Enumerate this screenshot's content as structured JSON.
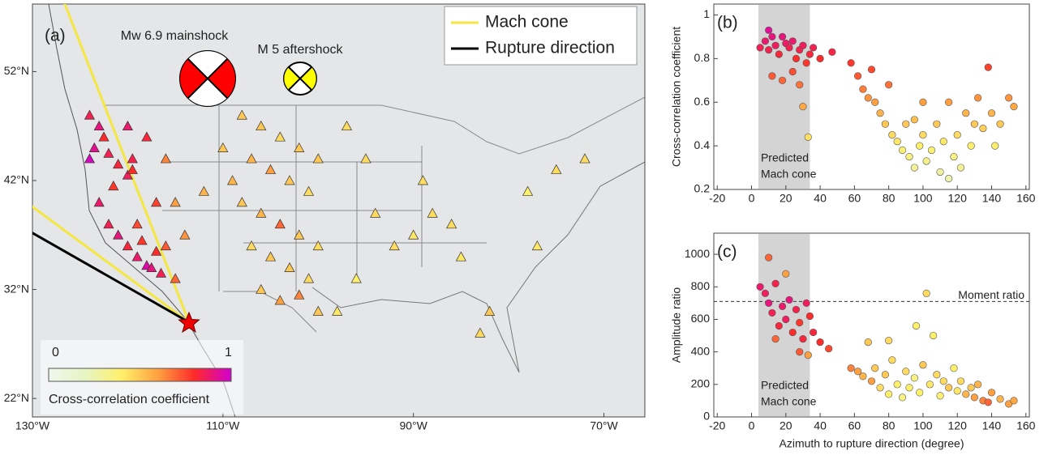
{
  "chart_data": [
    {
      "type": "map",
      "panel_label": "(a)",
      "xlim": [
        -130,
        -65.7
      ],
      "ylim": [
        20.3,
        58.2
      ],
      "xticks": [
        {
          "value": -130,
          "label": "130°W"
        },
        {
          "value": -110,
          "label": "110°W"
        },
        {
          "value": -90,
          "label": "90°W"
        },
        {
          "value": -70,
          "label": "70°W"
        }
      ],
      "yticks": [
        {
          "value": 52,
          "label": "52°N"
        },
        {
          "value": 42,
          "label": "42°N"
        },
        {
          "value": 32,
          "label": "32°N"
        },
        {
          "value": 22,
          "label": "22°N"
        }
      ],
      "annotations": [
        "Mw 6.9 mainshock",
        "M 5 aftershock"
      ],
      "lines": [
        {
          "name": "Mach cone",
          "color": "#f5e642"
        },
        {
          "name": "Rupture direction",
          "color": "#000000"
        }
      ],
      "colormap": [
        "#eef7ee",
        "#e6f4c4",
        "#fff06a",
        "#ffa040",
        "#ff2a2a",
        "#d000d0"
      ],
      "clim": [
        0,
        1
      ],
      "cticks": [
        0,
        1
      ],
      "colorbar_label": "Cross-correlation coefficient",
      "x": [
        -124,
        -123,
        -122.5,
        -123.5,
        -124,
        -122,
        -121,
        -120,
        -119.5,
        -121.5,
        -123,
        -122,
        -121,
        -120,
        -119,
        -118,
        -117.5,
        -116.5,
        -117,
        -118.5,
        -119,
        -116,
        -117,
        -118,
        -120,
        -116,
        -115,
        -114,
        -115,
        -119.5,
        -108,
        -106,
        -104,
        -102,
        -107,
        -105,
        -103,
        -101,
        -108,
        -106,
        -104,
        -102,
        -107,
        -105,
        -103,
        -101,
        -106,
        -104,
        -102,
        -100,
        -100,
        -100,
        -109,
        -110,
        -112,
        -97,
        -95,
        -94,
        -92,
        -96,
        -90,
        -88,
        -89,
        -85,
        -86,
        -82,
        -78,
        -77,
        -75,
        -83,
        -98,
        -72
      ],
      "y": [
        48,
        47,
        46,
        45,
        44,
        44.5,
        43.5,
        42.5,
        43,
        41.5,
        40,
        38,
        37,
        36,
        35,
        34.2,
        34,
        33.5,
        35.5,
        36.5,
        38,
        36,
        40,
        46,
        47,
        44,
        40,
        37,
        33,
        44,
        48,
        47,
        46,
        45,
        44,
        43,
        42,
        41,
        40,
        39,
        38,
        37,
        36,
        35,
        34,
        33,
        32,
        31,
        31.5,
        30,
        36,
        44,
        42,
        45,
        41,
        47,
        44,
        39,
        36,
        33,
        37,
        39,
        42,
        35,
        38,
        30,
        41,
        36,
        43,
        28,
        30,
        44
      ],
      "values": [
        0.85,
        0.9,
        0.8,
        0.92,
        0.98,
        0.85,
        0.82,
        0.86,
        0.8,
        0.78,
        0.88,
        0.85,
        0.9,
        0.82,
        0.88,
        0.95,
        0.9,
        0.85,
        0.8,
        0.78,
        0.75,
        0.72,
        0.76,
        0.82,
        0.88,
        0.65,
        0.6,
        0.62,
        0.7,
        0.84,
        0.5,
        0.5,
        0.45,
        0.5,
        0.55,
        0.6,
        0.5,
        0.45,
        0.5,
        0.55,
        0.7,
        0.5,
        0.45,
        0.5,
        0.5,
        0.45,
        0.5,
        0.6,
        0.65,
        0.5,
        0.45,
        0.5,
        0.55,
        0.5,
        0.55,
        0.45,
        0.45,
        0.45,
        0.45,
        0.4,
        0.42,
        0.45,
        0.45,
        0.42,
        0.45,
        0.5,
        0.4,
        0.42,
        0.45,
        0.45,
        0.42,
        0.45
      ]
    },
    {
      "type": "scatter",
      "panel_label": "(b)",
      "ylabel": "Cross-correlation coefficient",
      "xlim": [
        -22,
        162
      ],
      "ylim": [
        0.2,
        1.05
      ],
      "xticks": [
        -20,
        0,
        20,
        40,
        60,
        80,
        100,
        120,
        140,
        160
      ],
      "yticks": [
        0.2,
        0.4,
        0.6,
        0.8,
        1
      ],
      "shade": [
        4,
        34
      ],
      "annotation": [
        "Predicted",
        "Mach cone"
      ],
      "colormap": [
        "#eef7ee",
        "#e6f4c4",
        "#fff06a",
        "#ffa040",
        "#ff2a2a",
        "#d000d0"
      ],
      "x": [
        5,
        8,
        10,
        12,
        14,
        16,
        18,
        20,
        22,
        24,
        26,
        28,
        30,
        32,
        34,
        12,
        18,
        24,
        28,
        30,
        10,
        36,
        40,
        47,
        33,
        58,
        62,
        65,
        70,
        72,
        75,
        78,
        80,
        82,
        85,
        88,
        90,
        92,
        95,
        98,
        100,
        102,
        105,
        108,
        110,
        112,
        115,
        118,
        120,
        122,
        125,
        128,
        130,
        132,
        135,
        138,
        140,
        142,
        145,
        150,
        153,
        100,
        115,
        68,
        95
      ],
      "values": [
        0.85,
        0.88,
        0.84,
        0.9,
        0.86,
        0.82,
        0.9,
        0.87,
        0.85,
        0.88,
        0.8,
        0.84,
        0.86,
        0.78,
        0.82,
        0.72,
        0.7,
        0.74,
        0.68,
        0.58,
        0.93,
        0.85,
        0.8,
        0.83,
        0.44,
        0.78,
        0.72,
        0.66,
        0.75,
        0.6,
        0.55,
        0.5,
        0.68,
        0.45,
        0.42,
        0.38,
        0.5,
        0.35,
        0.3,
        0.4,
        0.45,
        0.33,
        0.38,
        0.5,
        0.28,
        0.42,
        0.6,
        0.35,
        0.45,
        0.3,
        0.55,
        0.4,
        0.5,
        0.62,
        0.48,
        0.76,
        0.55,
        0.4,
        0.5,
        0.62,
        0.58,
        0.6,
        0.25,
        0.62,
        0.52
      ]
    },
    {
      "type": "scatter",
      "panel_label": "(c)",
      "ylabel": "Amplitude ratio",
      "xlabel": "Azimuth to rupture direction (degree)",
      "xlim": [
        -22,
        162
      ],
      "ylim": [
        0,
        1130
      ],
      "xticks": [
        -20,
        0,
        20,
        40,
        60,
        80,
        100,
        120,
        140,
        160
      ],
      "yticks": [
        0,
        200,
        400,
        600,
        800,
        1000
      ],
      "shade": [
        4,
        34
      ],
      "annotation": [
        "Predicted",
        "Mach cone"
      ],
      "hline": {
        "value": 710,
        "label": "Moment ratio"
      },
      "colormap": [
        "#eef7ee",
        "#e6f4c4",
        "#fff06a",
        "#ffa040",
        "#ff2a2a",
        "#d000d0"
      ],
      "x": [
        5,
        8,
        10,
        12,
        14,
        16,
        18,
        20,
        22,
        24,
        26,
        28,
        30,
        32,
        34,
        10,
        20,
        28,
        14,
        36,
        40,
        45,
        33,
        58,
        62,
        65,
        68,
        70,
        72,
        75,
        78,
        80,
        82,
        85,
        88,
        90,
        92,
        95,
        98,
        100,
        102,
        104,
        106,
        108,
        110,
        112,
        115,
        118,
        120,
        122,
        125,
        128,
        130,
        132,
        135,
        138,
        140,
        145,
        150,
        153,
        96,
        80
      ],
      "values": [
        800,
        760,
        700,
        640,
        820,
        560,
        680,
        600,
        720,
        520,
        660,
        580,
        480,
        700,
        620,
        980,
        880,
        400,
        480,
        520,
        460,
        420,
        380,
        300,
        280,
        250,
        460,
        220,
        300,
        180,
        260,
        140,
        350,
        200,
        120,
        280,
        180,
        240,
        150,
        320,
        760,
        200,
        500,
        260,
        130,
        220,
        180,
        300,
        160,
        220,
        140,
        180,
        120,
        200,
        100,
        90,
        150,
        110,
        80,
        100,
        560,
        470
      ],
      "cc": [
        0.88,
        0.86,
        0.9,
        0.85,
        0.84,
        0.82,
        0.88,
        0.86,
        0.9,
        0.8,
        0.84,
        0.78,
        0.82,
        0.86,
        0.8,
        0.7,
        0.6,
        0.72,
        0.7,
        0.82,
        0.8,
        0.75,
        0.6,
        0.65,
        0.6,
        0.55,
        0.5,
        0.6,
        0.5,
        0.45,
        0.5,
        0.4,
        0.45,
        0.4,
        0.35,
        0.45,
        0.4,
        0.35,
        0.4,
        0.5,
        0.45,
        0.42,
        0.4,
        0.45,
        0.38,
        0.45,
        0.5,
        0.4,
        0.42,
        0.45,
        0.55,
        0.5,
        0.6,
        0.55,
        0.65,
        0.7,
        0.6,
        0.55,
        0.6,
        0.58,
        0.4,
        0.45
      ]
    }
  ]
}
